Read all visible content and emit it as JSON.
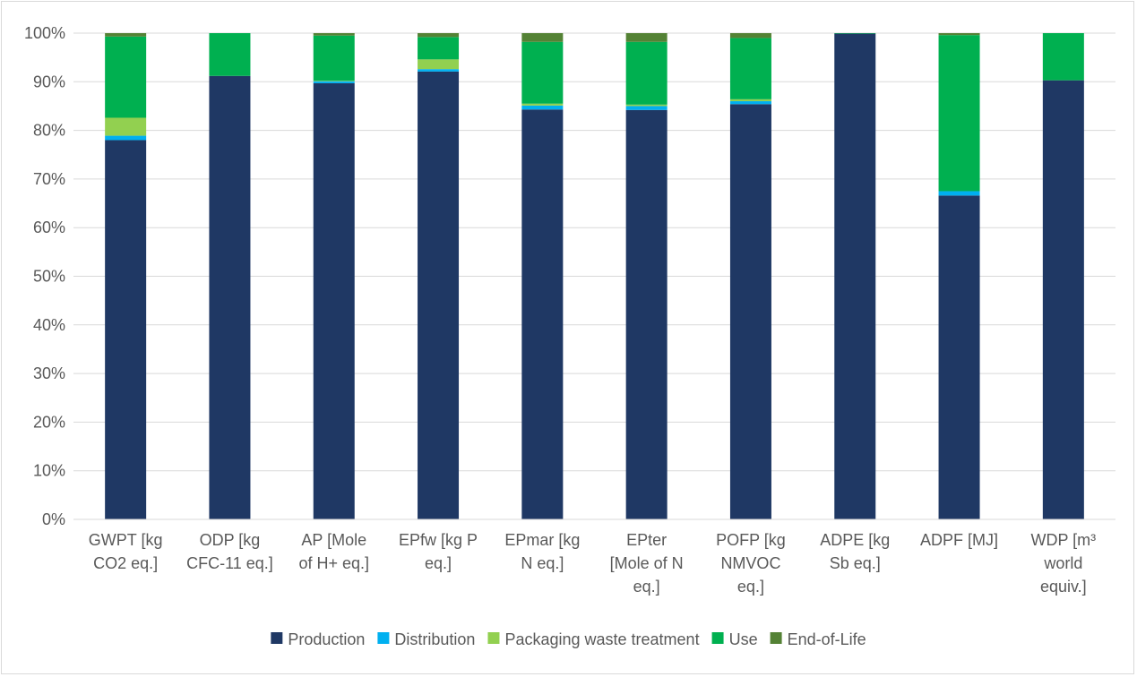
{
  "chart_data": {
    "type": "bar",
    "stacked": true,
    "percent": true,
    "categories": [
      [
        "GWPT [kg",
        "CO2 eq.]"
      ],
      [
        "ODP [kg",
        "CFC-11 eq.]"
      ],
      [
        "AP [Mole",
        "of H+ eq.]"
      ],
      [
        "EPfw [kg P",
        "eq.]"
      ],
      [
        "EPmar [kg",
        "N eq.]"
      ],
      [
        "EPter",
        "[Mole of N",
        "eq.]"
      ],
      [
        "POFP [kg",
        "NMVOC",
        "eq.]"
      ],
      [
        "ADPE [kg",
        "Sb eq.]"
      ],
      [
        "ADPF [MJ]"
      ],
      [
        "WDP [m³",
        "world",
        "equiv.]"
      ]
    ],
    "series": [
      {
        "name": "Production",
        "color": "#1f3864",
        "values": [
          78.0,
          91.2,
          89.7,
          92.1,
          84.3,
          84.2,
          85.4,
          99.9,
          66.6,
          90.3
        ]
      },
      {
        "name": "Distribution",
        "color": "#00b0f0",
        "values": [
          0.9,
          0.0,
          0.4,
          0.5,
          0.8,
          0.8,
          0.6,
          0.0,
          0.9,
          0.0
        ]
      },
      {
        "name": "Packaging waste treatment",
        "color": "#92d050",
        "values": [
          3.7,
          0.0,
          0.1,
          2.0,
          0.4,
          0.3,
          0.4,
          0.0,
          0.0,
          0.0
        ]
      },
      {
        "name": "Use",
        "color": "#00b050",
        "values": [
          16.7,
          8.8,
          9.3,
          4.6,
          12.7,
          12.9,
          12.6,
          0.1,
          32.1,
          9.7
        ]
      },
      {
        "name": "End-of-Life",
        "color": "#548235",
        "values": [
          0.7,
          0.0,
          0.5,
          0.8,
          1.8,
          1.8,
          1.0,
          0.0,
          0.4,
          0.0
        ]
      }
    ],
    "ylim": [
      0,
      100
    ],
    "yticks": [
      "0%",
      "10%",
      "20%",
      "30%",
      "40%",
      "50%",
      "60%",
      "70%",
      "80%",
      "90%",
      "100%"
    ],
    "grid": true,
    "legend_position": "bottom"
  }
}
